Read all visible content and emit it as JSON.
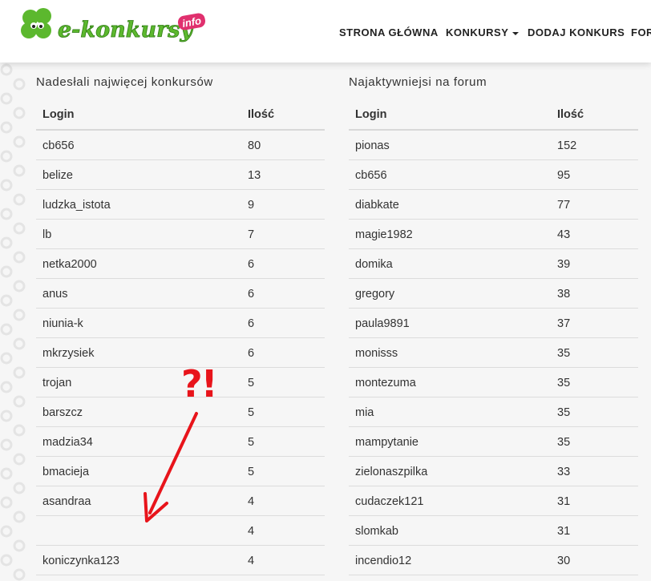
{
  "header": {
    "logo": {
      "text": "e-konkursy",
      "badge": "info"
    },
    "nav": [
      "STRONA GŁÓWNA",
      "KONKURSY",
      "DODAJ KONKURS",
      "FOR"
    ]
  },
  "tables": [
    {
      "title": "Nadesłali najwięcej konkursów",
      "columns": [
        "Login",
        "Ilość"
      ],
      "rows": [
        [
          "cb656",
          80
        ],
        [
          "belize",
          13
        ],
        [
          "ludzka_istota",
          9
        ],
        [
          "lb",
          7
        ],
        [
          "netka2000",
          6
        ],
        [
          "anus",
          6
        ],
        [
          "niunia-k",
          6
        ],
        [
          "mkrzysiek",
          6
        ],
        [
          "trojan",
          5
        ],
        [
          "barszcz",
          5
        ],
        [
          "madzia34",
          5
        ],
        [
          "bmacieja",
          5
        ],
        [
          "asandraa",
          4
        ],
        [
          null,
          4
        ],
        [
          "koniczynka123",
          4
        ]
      ]
    },
    {
      "title": "Najaktywniejsi na forum",
      "columns": [
        "Login",
        "Ilość"
      ],
      "rows": [
        [
          "pionas",
          152
        ],
        [
          "cb656",
          95
        ],
        [
          "diabkate",
          77
        ],
        [
          "magie1982",
          43
        ],
        [
          "domika",
          39
        ],
        [
          "gregory",
          38
        ],
        [
          "paula9891",
          37
        ],
        [
          "monisss",
          35
        ],
        [
          "montezuma",
          35
        ],
        [
          "mia",
          35
        ],
        [
          "mampytanie",
          35
        ],
        [
          "zielonaszpilka",
          33
        ],
        [
          "cudaczek121",
          31
        ],
        [
          "slomkab",
          31
        ],
        [
          "incendio12",
          30
        ]
      ]
    }
  ],
  "annotation": "?!"
}
